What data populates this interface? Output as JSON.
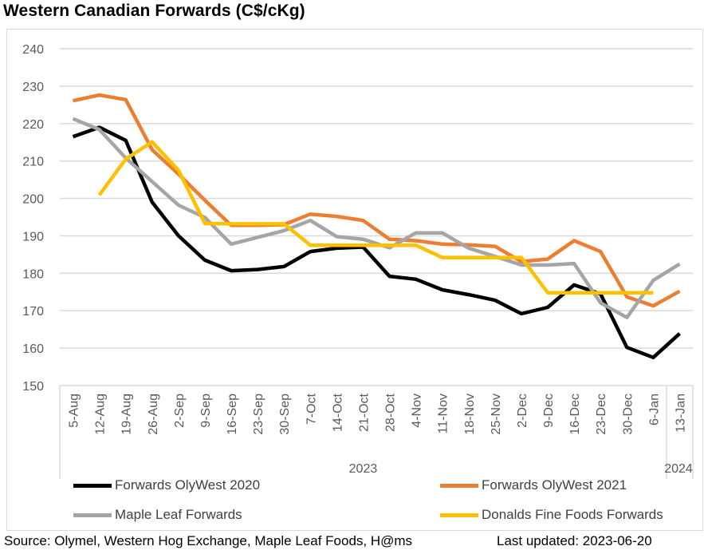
{
  "title": "Western Canadian Forwards (C$/cKg)",
  "footer": {
    "source": "Source: Olymel, Western Hog Exchange, Maple Leaf Foods, H@ms",
    "last_updated": "Last updated:  2023-06-20"
  },
  "chart_data": {
    "type": "line",
    "title": "Western Canadian Forwards (C$/cKg)",
    "xlabel": "",
    "ylabel": "",
    "ylim": [
      150,
      240
    ],
    "yticks": [
      150,
      160,
      170,
      180,
      190,
      200,
      210,
      220,
      230,
      240
    ],
    "grid": true,
    "legend_position": "bottom",
    "categories": [
      "5-Aug",
      "12-Aug",
      "19-Aug",
      "26-Aug",
      "2-Sep",
      "9-Sep",
      "16-Sep",
      "23-Sep",
      "30-Sep",
      "7-Oct",
      "14-Oct",
      "21-Oct",
      "28-Oct",
      "4-Nov",
      "11-Nov",
      "18-Nov",
      "25-Nov",
      "2-Dec",
      "9-Dec",
      "16-Dec",
      "23-Dec",
      "30-Dec",
      "6-Jan",
      "13-Jan"
    ],
    "year_groups": [
      {
        "label": "2023",
        "start": 0,
        "end": 22
      },
      {
        "label": "2024",
        "start": 23,
        "end": 23
      }
    ],
    "series": [
      {
        "name": "Forwards OlyWest 2020",
        "color": "#000000",
        "values": [
          216.5,
          219.0,
          215.5,
          199.0,
          190.0,
          183.5,
          180.7,
          181.0,
          181.8,
          185.8,
          186.7,
          187.0,
          179.2,
          178.4,
          175.6,
          174.3,
          172.8,
          169.2,
          170.9,
          176.9,
          174.5,
          160.2,
          157.5,
          163.9
        ]
      },
      {
        "name": "Forwards OlyWest 2021",
        "color": "#ed7d31",
        "values": [
          226.1,
          227.6,
          226.4,
          213.0,
          206.5,
          199.5,
          192.8,
          192.8,
          193.0,
          195.8,
          195.2,
          194.1,
          189.1,
          188.7,
          187.8,
          187.6,
          187.2,
          183.1,
          183.8,
          188.7,
          185.8,
          173.7,
          171.3,
          175.2
        ]
      },
      {
        "name": "Maple Leaf Forwards",
        "color": "#a5a5a5",
        "values": [
          221.3,
          218.4,
          210.8,
          204.5,
          198.2,
          194.9,
          187.8,
          189.6,
          191.4,
          194.1,
          189.8,
          189.1,
          186.8,
          190.8,
          190.8,
          186.7,
          184.5,
          182.2,
          182.2,
          182.6,
          172.1,
          168.2,
          178.1,
          182.5
        ]
      },
      {
        "name": "Donalds Fine Foods Forwards",
        "color": "#ffc000",
        "values": [
          null,
          200.9,
          210.5,
          215.1,
          207.5,
          193.3,
          193.2,
          193.2,
          193.2,
          187.5,
          187.5,
          187.5,
          187.5,
          187.5,
          184.2,
          184.2,
          184.2,
          184.2,
          174.8,
          174.8,
          174.8,
          174.8,
          174.8,
          null
        ]
      }
    ]
  }
}
